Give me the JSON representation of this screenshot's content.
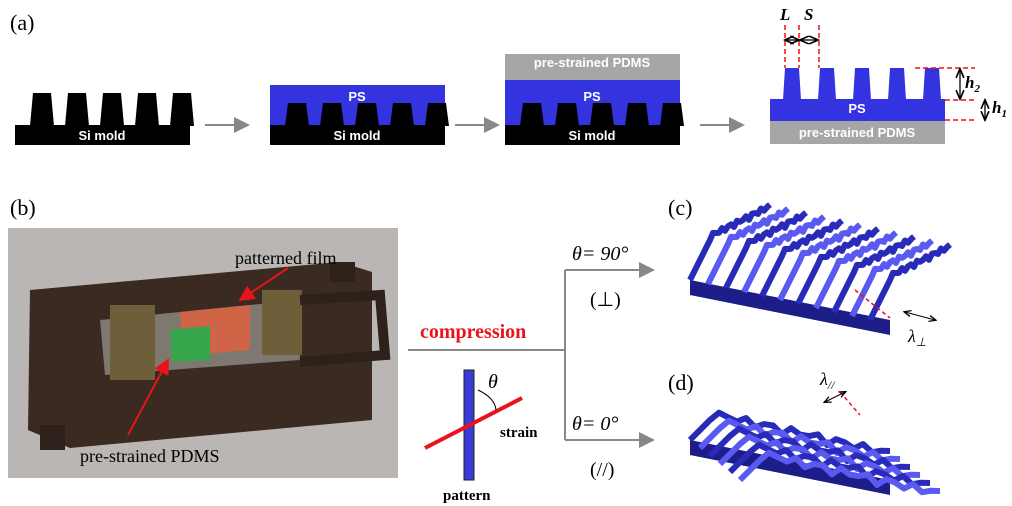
{
  "panels": {
    "a": "(a)",
    "b": "(b)",
    "c": "(c)",
    "d": "(d)"
  },
  "step1": {
    "mold": "Si mold"
  },
  "step2": {
    "film": "PS",
    "mold": "Si mold"
  },
  "step3": {
    "substrate": "pre-strained PDMS",
    "film": "PS",
    "mold": "Si mold"
  },
  "step4": {
    "substrate": "pre-strained PDMS",
    "film": "PS",
    "L": "L",
    "S": "S",
    "h2": {
      "main": "h",
      "sub": "2"
    },
    "h1": {
      "main": "h",
      "sub": "1"
    }
  },
  "photo": {
    "film_label": "patterned film",
    "substrate_label": "pre-strained PDMS"
  },
  "compression": {
    "label": "compression",
    "branch_perp": {
      "angle": "θ= 90°",
      "symbol": "(⊥)"
    },
    "branch_par": {
      "angle": "θ= 0°",
      "symbol": "(//)"
    },
    "theta": "θ",
    "strain": "strain",
    "pattern": "pattern"
  },
  "result_c": {
    "wavelength": {
      "main": "λ",
      "sub": "⊥"
    }
  },
  "result_d": {
    "wavelength": {
      "main": "λ",
      "sub": "//"
    }
  }
}
